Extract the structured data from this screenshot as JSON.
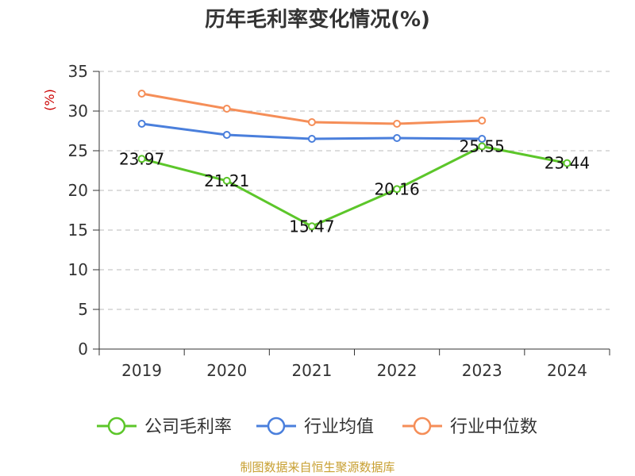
{
  "chart_data": {
    "type": "line",
    "title": "历年毛利率变化情况(%)",
    "ylabel": "(%)",
    "categories": [
      "2019",
      "2020",
      "2021",
      "2022",
      "2023",
      "2024"
    ],
    "ylim": [
      0,
      35
    ],
    "yticks": [
      0,
      5,
      10,
      15,
      20,
      25,
      30,
      35
    ],
    "grid": true,
    "legend_position": "bottom",
    "series": [
      {
        "name": "公司毛利率",
        "color": "#5cc62a",
        "labels": true,
        "values": [
          23.97,
          21.21,
          15.47,
          20.16,
          25.55,
          23.44
        ]
      },
      {
        "name": "行业均值",
        "color": "#4a7fdc",
        "labels": false,
        "values": [
          28.4,
          27.0,
          26.5,
          26.6,
          26.5,
          null
        ]
      },
      {
        "name": "行业中位数",
        "color": "#f58e58",
        "labels": false,
        "values": [
          32.2,
          30.3,
          28.6,
          28.4,
          28.8,
          null
        ]
      }
    ]
  },
  "footer": {
    "source": "制图数据来自恒生聚源数据库"
  }
}
